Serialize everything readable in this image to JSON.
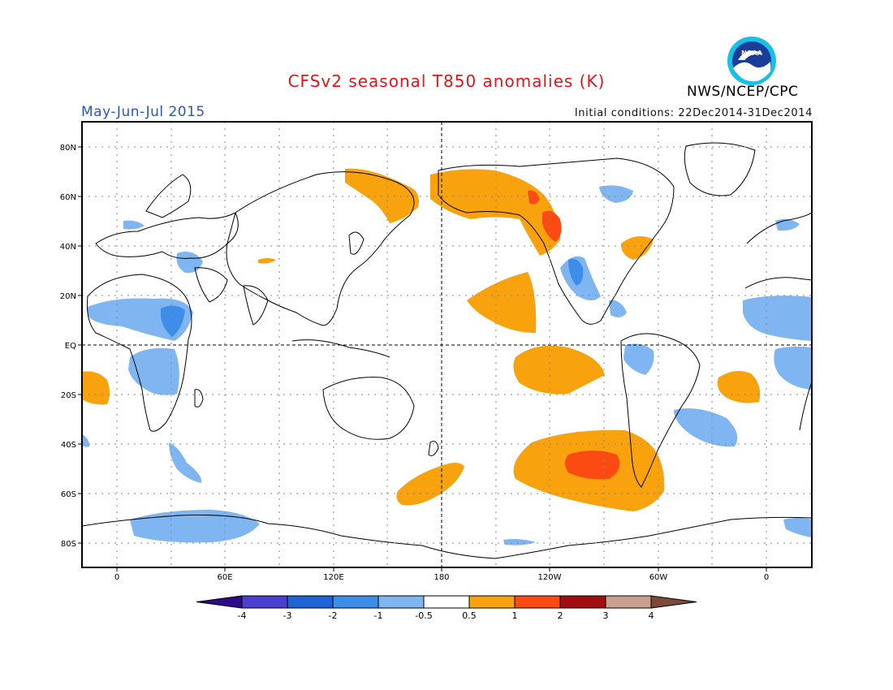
{
  "title": "CFSv2 seasonal T850 anomalies (K)",
  "season": "May-Jun-Jul 2015",
  "initial_conditions": "Initial conditions: 22Dec2014-31Dec2014",
  "agency": "NWS/NCEP/CPC",
  "logo": {
    "text": "NOAA",
    "icon": "noaa-logo-icon"
  },
  "map": {
    "projection": "equirectangular",
    "lat_labels": [
      "80N",
      "60N",
      "40N",
      "20N",
      "EQ",
      "20S",
      "40S",
      "60S",
      "80S"
    ],
    "lon_labels": [
      "0",
      "60E",
      "120E",
      "180",
      "120W",
      "60W",
      "0"
    ],
    "grid": "dotted",
    "reference_lines": [
      "EQ",
      "180"
    ]
  },
  "colorbar": {
    "labels": [
      "-4",
      "-3",
      "-2",
      "-1",
      "-0.5",
      "0.5",
      "1",
      "2",
      "3",
      "4"
    ],
    "colors": [
      "#2c0a8a",
      "#4b3fd0",
      "#1f64d6",
      "#3d8ee8",
      "#7fb6f2",
      "#ffffff",
      "#f8a20e",
      "#fb4b13",
      "#a20d12",
      "#c7a090",
      "#7d4a3a"
    ]
  },
  "colors": {
    "cold_1": "#7fb6f2",
    "cold_2": "#3d8ee8",
    "warm_1": "#f8a20e",
    "warm_2": "#fb4b13",
    "title": "#e8121a",
    "season": "#2a52e0"
  }
}
